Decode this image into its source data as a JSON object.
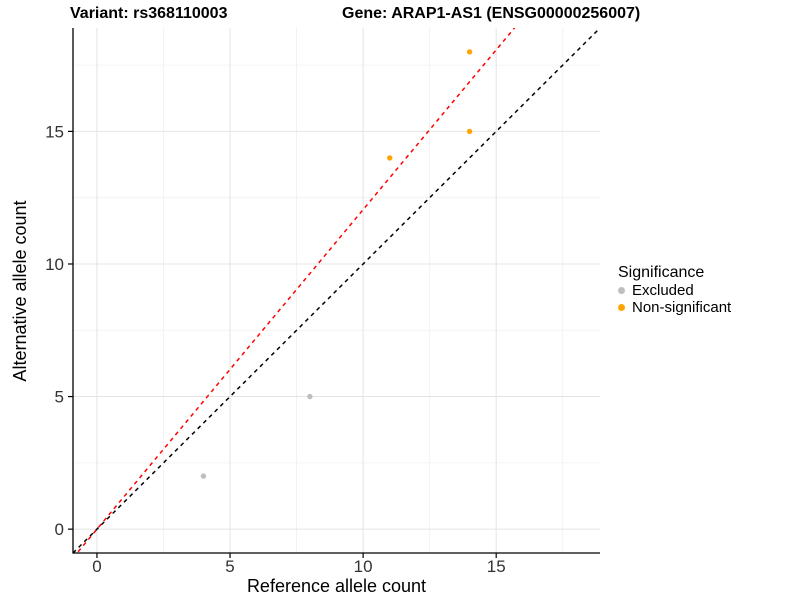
{
  "header": {
    "variant_title": "Variant: rs368110003",
    "gene_title": "Gene: ARAP1-AS1 (ENSG00000256007)"
  },
  "chart_data": {
    "type": "scatter",
    "titles": [
      "Variant: rs368110003",
      "Gene: ARAP1-AS1 (ENSG00000256007)"
    ],
    "xlabel": "Reference allele count",
    "ylabel": "Alternative allele count",
    "xlim": [
      -0.9,
      18.9
    ],
    "ylim": [
      -0.9,
      18.9
    ],
    "xticks": [
      0,
      5,
      10,
      15
    ],
    "yticks": [
      0,
      5,
      10,
      15
    ],
    "grid": "major+minor",
    "legend": {
      "title": "Significance",
      "position": "right"
    },
    "series": [
      {
        "name": "Excluded",
        "color": "#BEBEBE",
        "points": [
          [
            4,
            2
          ],
          [
            8,
            5
          ]
        ]
      },
      {
        "name": "Non-significant",
        "color": "#FFA500",
        "points": [
          [
            11,
            14
          ],
          [
            14,
            15
          ],
          [
            14,
            18
          ]
        ]
      }
    ],
    "lines": [
      {
        "name": "identity",
        "slope": 1.0,
        "intercept": 0,
        "color": "#000000",
        "dash": true
      },
      {
        "name": "fitted-ratio",
        "slope": 1.205,
        "intercept": 0,
        "color": "#FF0000",
        "dash": true
      }
    ],
    "style": {
      "grid_major_color": "#E4E4E4",
      "grid_minor_color": "#F0F0F0",
      "axis_line_color": "#000000",
      "tick_label_color": "#333333",
      "point_radius": 2.7
    }
  }
}
